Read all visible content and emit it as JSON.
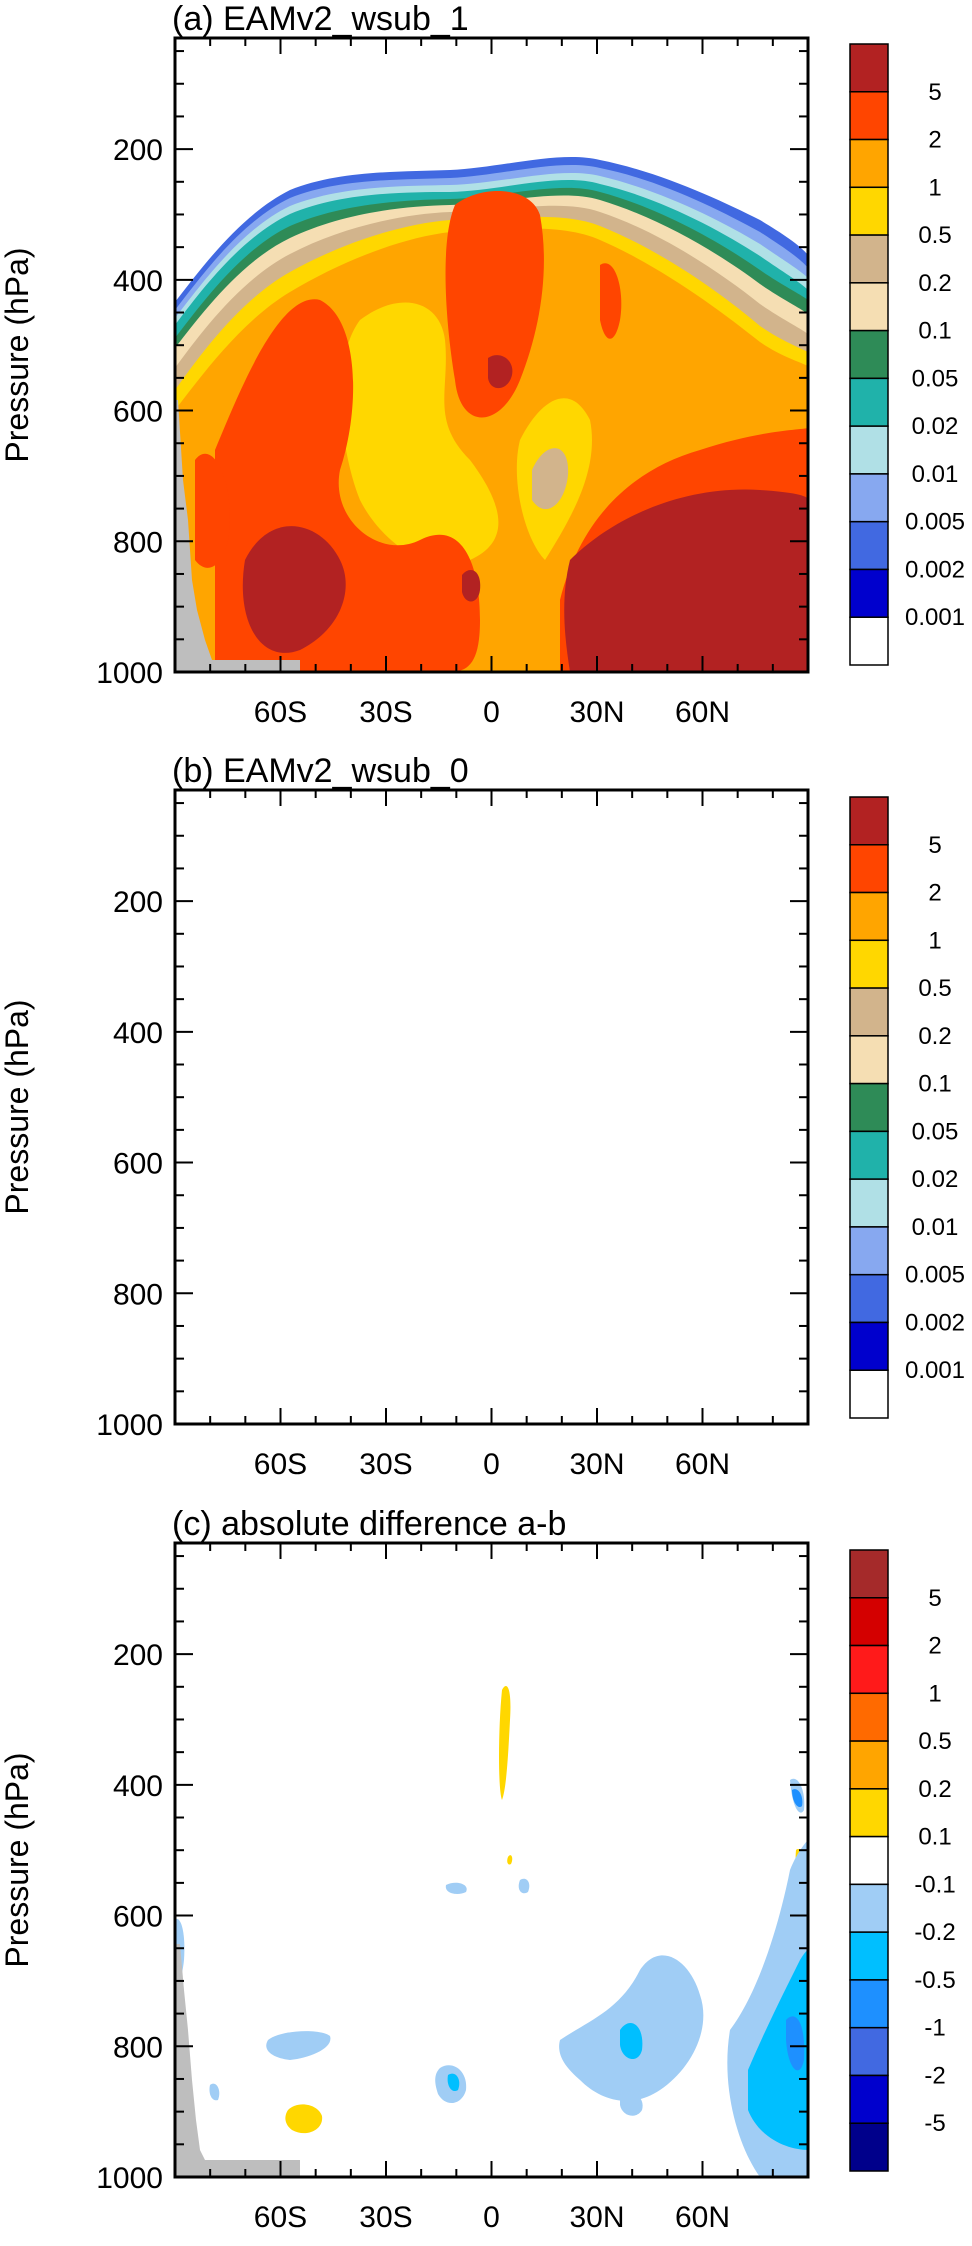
{
  "chart_data": [
    {
      "type": "contour",
      "title": "(a) EAMv2_wsub_1",
      "ylabel": "Pressure (hPa)",
      "x_ticks": [
        "60S",
        "30S",
        "0",
        "30N",
        "60N"
      ],
      "x_tick_values": [
        -60,
        -30,
        0,
        30,
        60
      ],
      "xlim": [
        -90,
        90
      ],
      "y_ticks": [
        "200",
        "400",
        "600",
        "800",
        "1000"
      ],
      "y_tick_values": [
        200,
        400,
        600,
        800,
        1000
      ],
      "ylim": [
        1000,
        30
      ],
      "colorbar": {
        "labels": [
          "5",
          "2",
          "1",
          "0.5",
          "0.2",
          "0.1",
          "0.05",
          "0.02",
          "0.01",
          "0.005",
          "0.002",
          "0.001"
        ],
        "colors": [
          "#B22222",
          "#FF4500",
          "#FFA500",
          "#FFD700",
          "#D2B48C",
          "#F5DEB3",
          "#2E8B57",
          "#20B2AA",
          "#B0E0E6",
          "#87A8F0",
          "#4169E1",
          "#0000CD",
          "#FFFFFF"
        ]
      },
      "topography_color": "#BEBEBE"
    },
    {
      "type": "contour",
      "title": "(b) EAMv2_wsub_0",
      "ylabel": "Pressure (hPa)",
      "x_ticks": [
        "60S",
        "30S",
        "0",
        "30N",
        "60N"
      ],
      "x_tick_values": [
        -60,
        -30,
        0,
        30,
        60
      ],
      "xlim": [
        -90,
        90
      ],
      "y_ticks": [
        "200",
        "400",
        "600",
        "800",
        "1000"
      ],
      "y_tick_values": [
        200,
        400,
        600,
        800,
        1000
      ],
      "ylim": [
        1000,
        30
      ],
      "colorbar": {
        "labels": [
          "5",
          "2",
          "1",
          "0.5",
          "0.2",
          "0.1",
          "0.05",
          "0.02",
          "0.01",
          "0.005",
          "0.002",
          "0.001"
        ],
        "colors": [
          "#B22222",
          "#FF4500",
          "#FFA500",
          "#FFD700",
          "#D2B48C",
          "#F5DEB3",
          "#2E8B57",
          "#20B2AA",
          "#B0E0E6",
          "#87A8F0",
          "#4169E1",
          "#0000CD",
          "#FFFFFF"
        ]
      },
      "topography_color": "#BEBEBE"
    },
    {
      "type": "contour",
      "title": "(c) absolute difference a-b",
      "ylabel": "Pressure (hPa)",
      "x_ticks": [
        "60S",
        "30S",
        "0",
        "30N",
        "60N"
      ],
      "x_tick_values": [
        -60,
        -30,
        0,
        30,
        60
      ],
      "xlim": [
        -90,
        90
      ],
      "y_ticks": [
        "200",
        "400",
        "600",
        "800",
        "1000"
      ],
      "y_tick_values": [
        200,
        400,
        600,
        800,
        1000
      ],
      "ylim": [
        1000,
        30
      ],
      "colorbar": {
        "labels": [
          "5",
          "2",
          "1",
          "0.5",
          "0.2",
          "0.1",
          "-0.1",
          "-0.2",
          "-0.5",
          "-1",
          "-2",
          "-5"
        ],
        "colors": [
          "#A52A2A",
          "#D40000",
          "#FF1A1A",
          "#FF6A00",
          "#FFA500",
          "#FFD700",
          "#FFFFFF",
          "#A0CDF5",
          "#00BFFF",
          "#1E90FF",
          "#4169E1",
          "#0000CD",
          "#00008B"
        ]
      },
      "topography_color": "#BEBEBE"
    }
  ]
}
